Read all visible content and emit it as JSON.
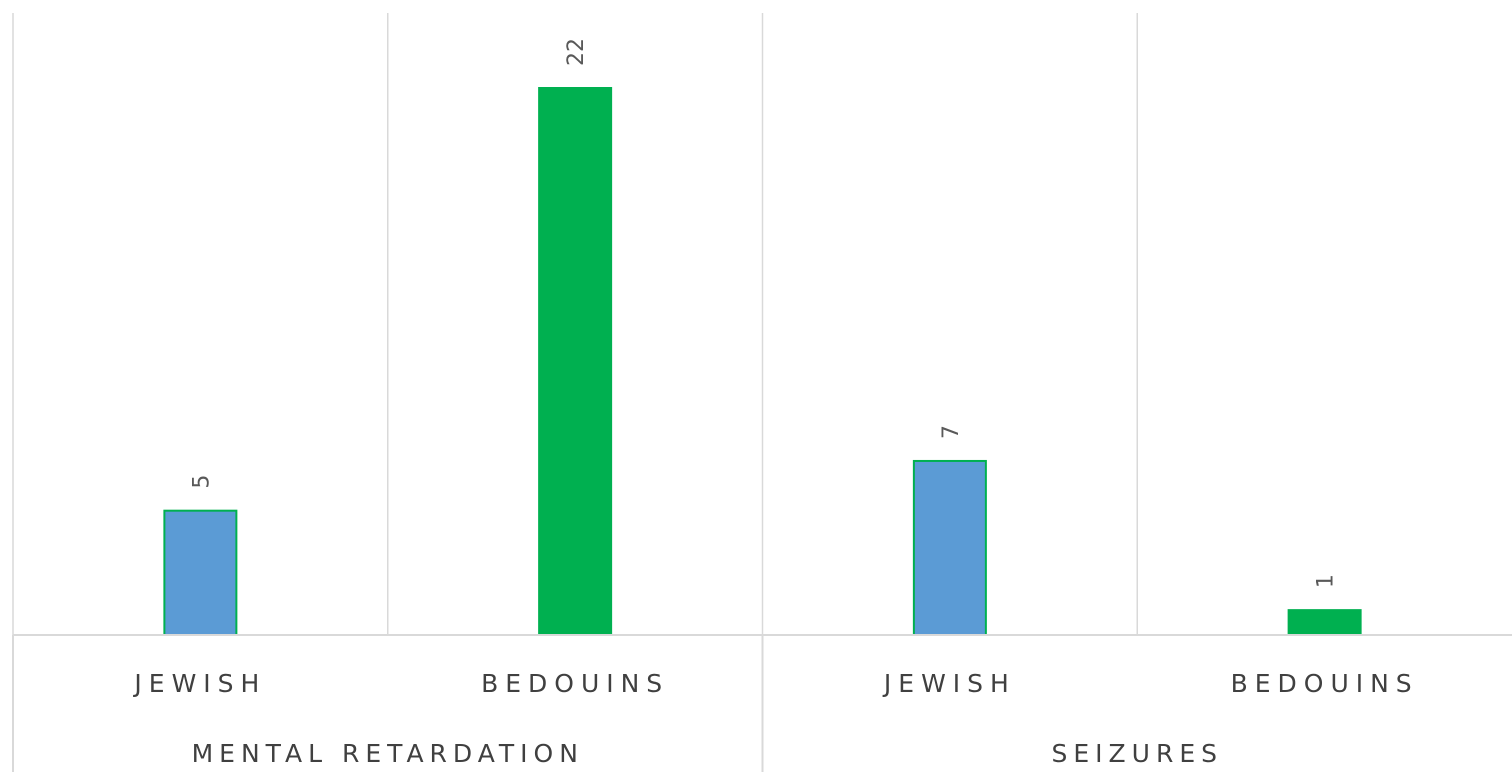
{
  "chart_data": {
    "type": "bar",
    "categories": [
      "JEWISH",
      "BEDOUINS",
      "JEWISH",
      "BEDOUINS"
    ],
    "groups": [
      {
        "label": "MENTAL RETARDATION",
        "indices": [
          0,
          1
        ]
      },
      {
        "label": "SEIZURES",
        "indices": [
          2,
          3
        ]
      }
    ],
    "values": [
      5,
      22,
      7,
      1
    ],
    "data_labels": [
      "5",
      "22",
      "7",
      "1"
    ],
    "colors": [
      "#5b9bd5",
      "#00b050",
      "#5b9bd5",
      "#00b050"
    ],
    "bar_border_color": "#00b050",
    "gridline_color": "#d9d9d9",
    "ylim": [
      0,
      25
    ],
    "grid": true,
    "legend": "none"
  }
}
